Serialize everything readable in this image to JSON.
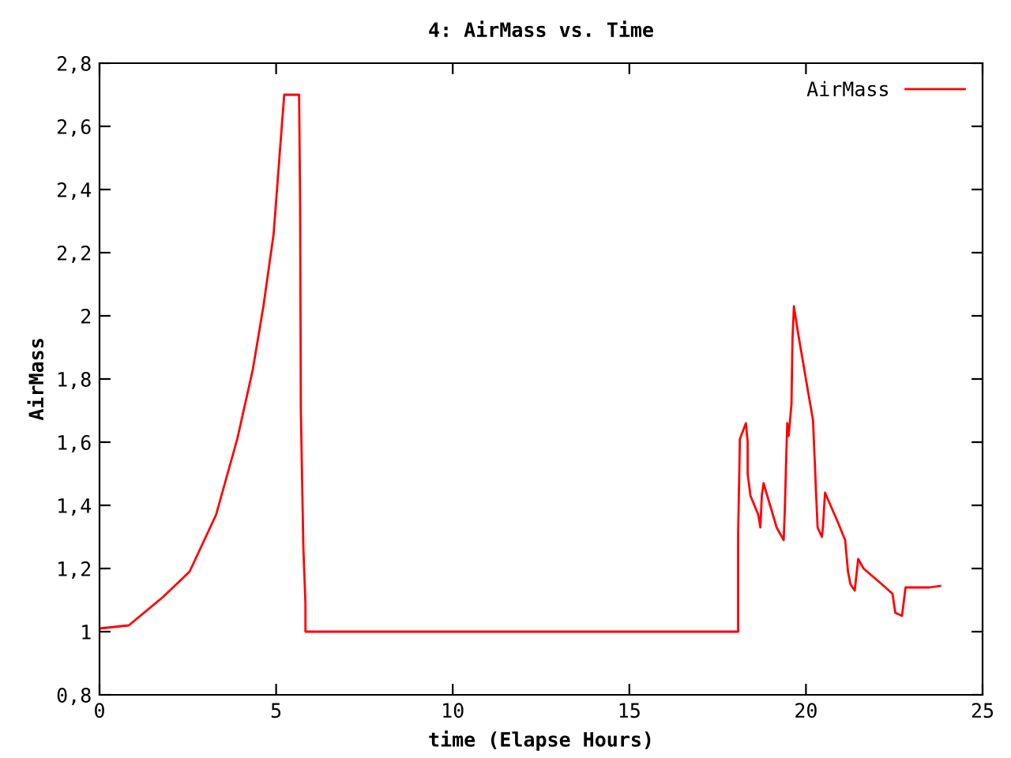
{
  "chart_data": {
    "type": "line",
    "title": "4: AirMass vs. Time",
    "xlabel": "time (Elapse Hours)",
    "ylabel": "AirMass",
    "series": [
      {
        "name": "AirMass",
        "color": "#ff0000",
        "x": [
          0,
          0.83,
          1.8,
          2.55,
          3.3,
          3.9,
          4.34,
          4.64,
          4.93,
          5.16,
          5.23,
          5.65,
          5.68,
          5.7,
          5.77,
          5.83,
          5.83,
          18.08,
          18.08,
          18.13,
          18.3,
          18.35,
          18.35,
          18.43,
          18.65,
          18.71,
          18.75,
          18.8,
          19.17,
          19.37,
          19.4,
          19.47,
          19.51,
          19.59,
          19.62,
          19.66,
          19.77,
          20.06,
          20.2,
          20.29,
          20.33,
          20.45,
          20.48,
          20.54,
          20.89,
          21.11,
          21.19,
          21.26,
          21.38,
          21.48,
          21.63,
          22.15,
          22.45,
          22.53,
          22.72,
          22.82,
          22.97,
          23.5,
          23.8
        ],
        "values": [
          1.01,
          1.02,
          1.11,
          1.19,
          1.37,
          1.61,
          1.83,
          2.03,
          2.26,
          2.6,
          2.7,
          2.7,
          2.36,
          1.7,
          1.27,
          1.09,
          1.0,
          1.0,
          1.31,
          1.61,
          1.66,
          1.6,
          1.5,
          1.43,
          1.37,
          1.33,
          1.43,
          1.47,
          1.33,
          1.29,
          1.38,
          1.66,
          1.62,
          1.72,
          1.93,
          2.03,
          1.95,
          1.76,
          1.67,
          1.43,
          1.33,
          1.3,
          1.33,
          1.44,
          1.35,
          1.29,
          1.19,
          1.15,
          1.13,
          1.23,
          1.2,
          1.15,
          1.12,
          1.06,
          1.05,
          1.14,
          1.14,
          1.14,
          1.145
        ]
      }
    ],
    "xlim": [
      0,
      25
    ],
    "xticks": [
      0,
      5,
      10,
      15,
      20,
      25
    ],
    "ylim": [
      0.8,
      2.8
    ],
    "yticks": [
      {
        "value": 0.8,
        "label": "0,8"
      },
      1,
      {
        "value": 1.2,
        "label": "1,2"
      },
      {
        "value": 1.4,
        "label": "1,4"
      },
      {
        "value": 1.6,
        "label": "1,6"
      },
      {
        "value": 1.8,
        "label": "1,8"
      },
      2,
      {
        "value": 2.2,
        "label": "2,2"
      },
      {
        "value": 2.4,
        "label": "2,4"
      },
      {
        "value": 2.6,
        "label": "2,6"
      },
      {
        "value": 2.8,
        "label": "2,8"
      }
    ],
    "legend": "top right",
    "grid": false,
    "marker": "none",
    "line_style": "solid"
  }
}
